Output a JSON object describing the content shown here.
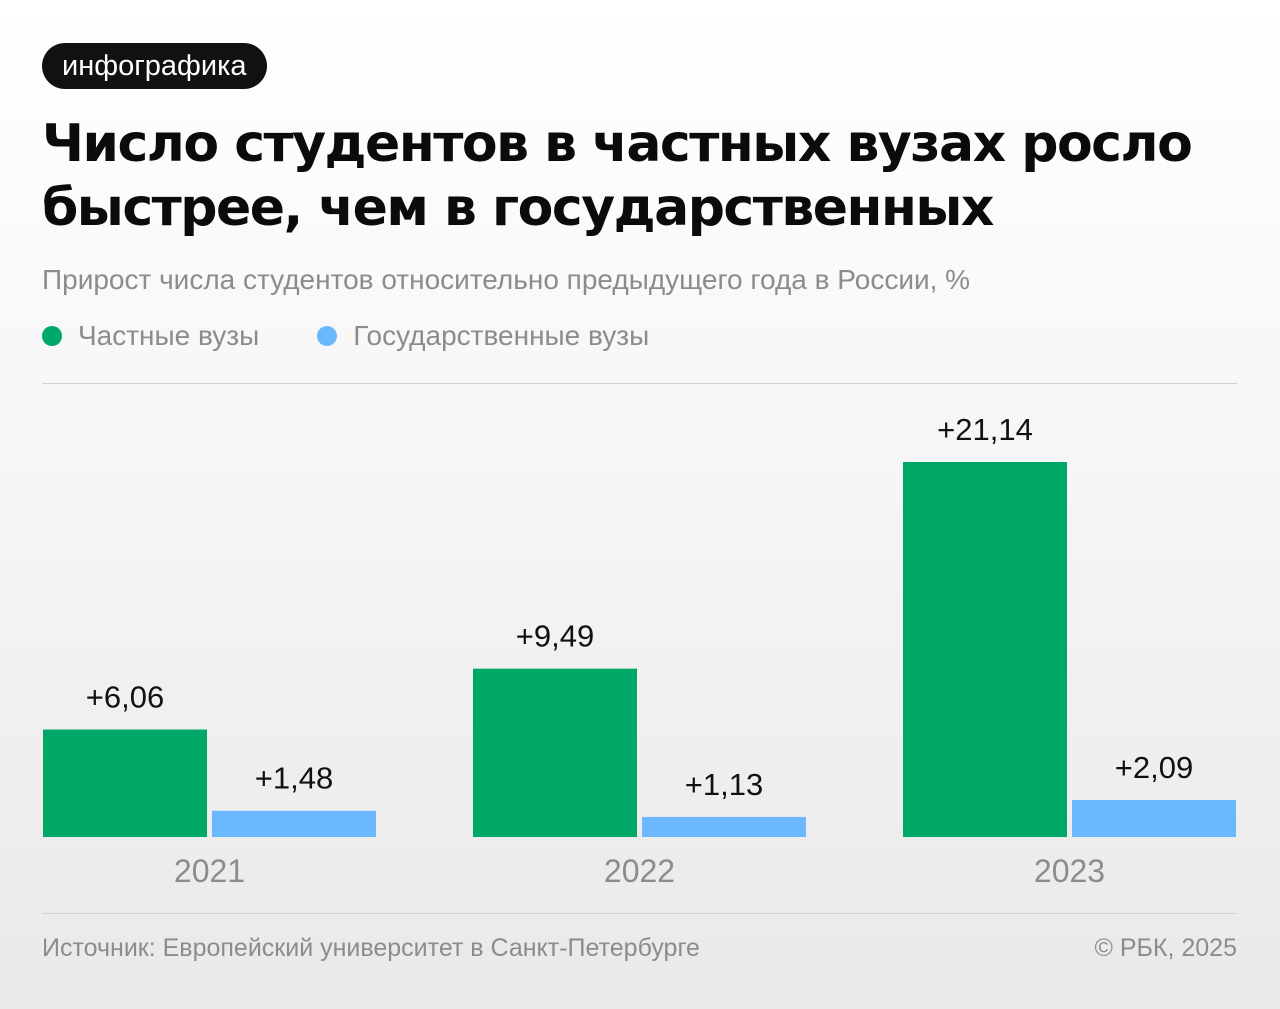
{
  "badge": "инфографика",
  "title": "Число студентов в частных вузах росло быстрее, чем в государственных",
  "subtitle": "Прирост числа студентов относительно предыдущего года в России, %",
  "legend": [
    {
      "label": "Частные вузы",
      "color": "#00a868"
    },
    {
      "label": "Государственные вузы",
      "color": "#6bb8ff"
    }
  ],
  "source": "Источник: Европейский университет в Санкт-Петербурге",
  "copyright": "© РБК, 2025",
  "chart_data": {
    "type": "bar",
    "categories": [
      "2021",
      "2022",
      "2023"
    ],
    "series": [
      {
        "name": "Частные вузы",
        "values": [
          6.06,
          9.49,
          21.14
        ],
        "labels": [
          "+6,06",
          "+9,49",
          "+21,14"
        ],
        "color": "#00a868"
      },
      {
        "name": "Государственные вузы",
        "values": [
          1.48,
          1.13,
          2.09
        ],
        "labels": [
          "+1,48",
          "+1,13",
          "+2,09"
        ],
        "color": "#6bb8ff"
      }
    ],
    "title": "Число студентов в частных вузах росло быстрее, чем в государственных",
    "subtitle": "Прирост числа студентов относительно предыдущего года в России, %",
    "ylim": [
      0,
      21.14
    ],
    "grid": false,
    "legend_position": "top-left"
  }
}
